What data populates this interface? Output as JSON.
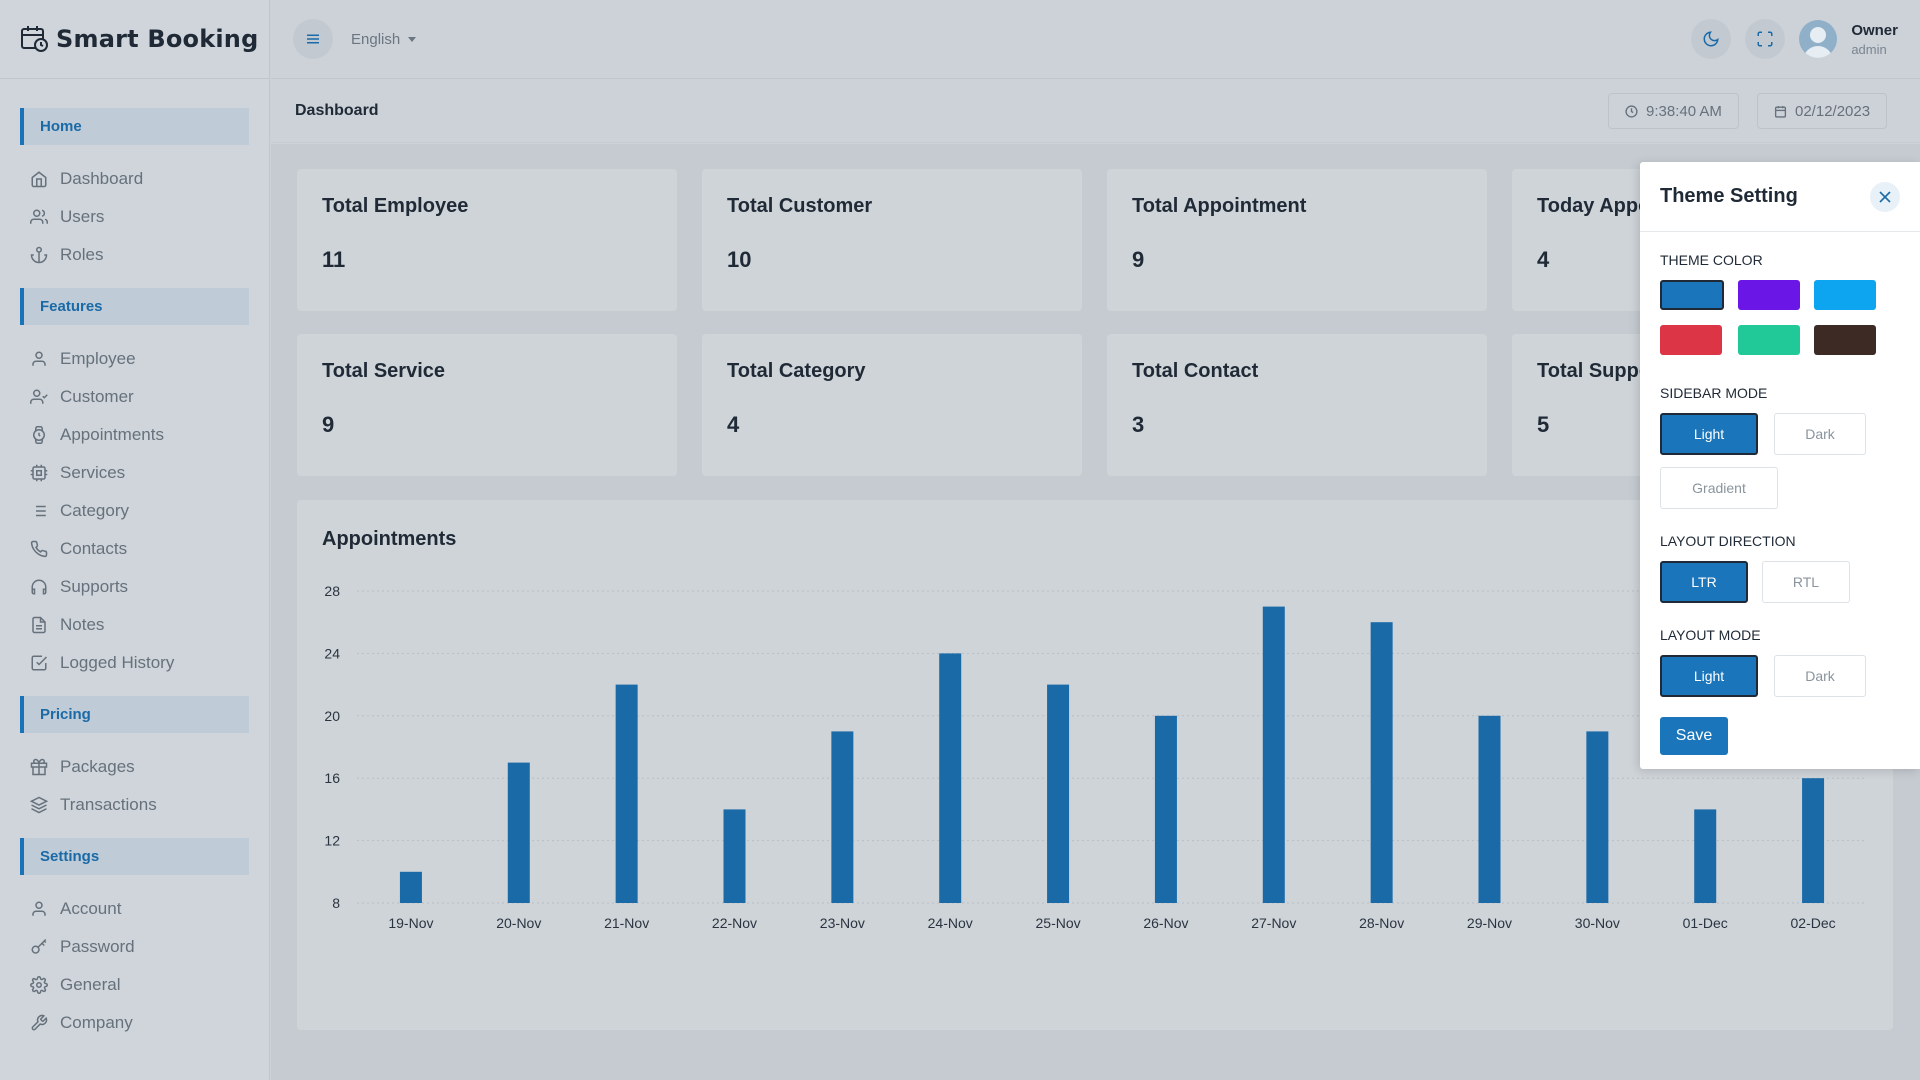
{
  "brand": {
    "name": "Smart Booking"
  },
  "sidebar": {
    "sections": [
      {
        "title": "Home",
        "items": [
          {
            "label": "Dashboard",
            "icon": "home-icon"
          },
          {
            "label": "Users",
            "icon": "users-icon"
          },
          {
            "label": "Roles",
            "icon": "anchor-icon"
          }
        ]
      },
      {
        "title": "Features",
        "items": [
          {
            "label": "Employee",
            "icon": "user-icon"
          },
          {
            "label": "Customer",
            "icon": "user-check-icon"
          },
          {
            "label": "Appointments",
            "icon": "watch-icon"
          },
          {
            "label": "Services",
            "icon": "cpu-icon"
          },
          {
            "label": "Category",
            "icon": "list-icon"
          },
          {
            "label": "Contacts",
            "icon": "phone-icon"
          },
          {
            "label": "Supports",
            "icon": "headphones-icon"
          },
          {
            "label": "Notes",
            "icon": "file-text-icon"
          },
          {
            "label": "Logged History",
            "icon": "check-square-icon"
          }
        ]
      },
      {
        "title": "Pricing",
        "items": [
          {
            "label": "Packages",
            "icon": "gift-icon"
          },
          {
            "label": "Transactions",
            "icon": "layers-icon"
          }
        ]
      },
      {
        "title": "Settings",
        "items": [
          {
            "label": "Account",
            "icon": "user-icon"
          },
          {
            "label": "Password",
            "icon": "key-icon"
          },
          {
            "label": "General",
            "icon": "settings-icon"
          },
          {
            "label": "Company",
            "icon": "tool-icon"
          }
        ]
      }
    ]
  },
  "header": {
    "language": "English",
    "user": {
      "name": "Owner",
      "role": "admin"
    }
  },
  "subheader": {
    "title": "Dashboard",
    "time": "9:38:40 AM",
    "date": "02/12/2023"
  },
  "stats": [
    {
      "title": "Total Employee",
      "value": "11"
    },
    {
      "title": "Total Customer",
      "value": "10"
    },
    {
      "title": "Total Appointment",
      "value": "9"
    },
    {
      "title": "Today Appointment",
      "value": "4"
    },
    {
      "title": "Total Service",
      "value": "9"
    },
    {
      "title": "Total Category",
      "value": "4"
    },
    {
      "title": "Total Contact",
      "value": "3"
    },
    {
      "title": "Total Support",
      "value": "5"
    }
  ],
  "chart": {
    "title": "Appointments"
  },
  "chart_data": {
    "type": "bar",
    "categories": [
      "19-Nov",
      "20-Nov",
      "21-Nov",
      "22-Nov",
      "23-Nov",
      "24-Nov",
      "25-Nov",
      "26-Nov",
      "27-Nov",
      "28-Nov",
      "29-Nov",
      "30-Nov",
      "01-Dec",
      "02-Dec"
    ],
    "values": [
      10,
      17,
      22,
      14,
      19,
      24,
      22,
      20,
      27,
      26,
      20,
      19,
      14,
      16
    ],
    "ylim": [
      8,
      28
    ],
    "yticks": [
      8,
      12,
      16,
      20,
      24,
      28
    ],
    "grid": true,
    "color": "#1a6aa8"
  },
  "theme_panel": {
    "title": "Theme Setting",
    "theme_color_label": "THEME COLOR",
    "colors": [
      "#1a75bb",
      "#6a16e6",
      "#0ea5f0",
      "#dc3545",
      "#20c997",
      "#3d2a25"
    ],
    "sidebar_mode_label": "SIDEBAR MODE",
    "sidebar_modes": [
      "Light",
      "Dark",
      "Gradient"
    ],
    "layout_direction_label": "LAYOUT DIRECTION",
    "directions": [
      "LTR",
      "RTL"
    ],
    "layout_mode_label": "LAYOUT MODE",
    "layout_modes": [
      "Light",
      "Dark"
    ],
    "save_label": "Save"
  }
}
